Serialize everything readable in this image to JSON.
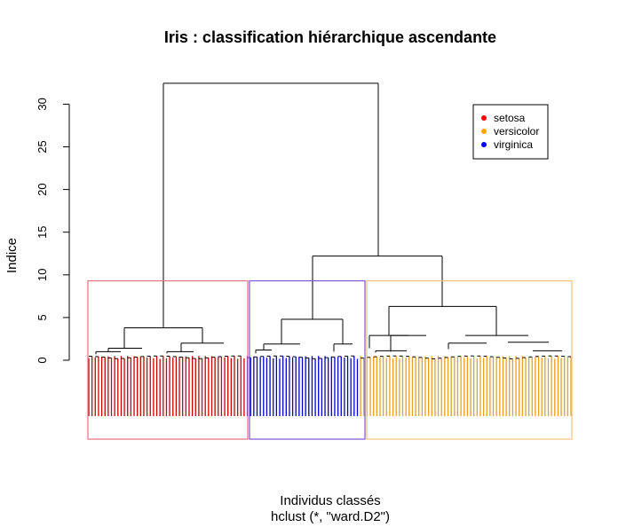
{
  "chart_data": {
    "type": "dendrogram",
    "title": "Iris : classification hiérarchique ascendante",
    "xlabel": "Individus classés",
    "xsublabel": "hclust (*, \"ward.D2\")",
    "ylabel": "Indice",
    "ylim": [
      0,
      32.5
    ],
    "yticks": [
      0,
      5,
      10,
      15,
      20,
      25,
      30
    ],
    "n_leaves": 150,
    "legend": {
      "position": "top-right",
      "items": [
        {
          "label": "setosa",
          "color": "#ff0000"
        },
        {
          "label": "versicolor",
          "color": "#ffa500"
        },
        {
          "label": "virginica",
          "color": "#0000ff"
        }
      ]
    },
    "cut_height": 9.3,
    "clusters": [
      {
        "id": 1,
        "size": 49,
        "box_color": "#e8707c",
        "leaf_color": "#cc0000"
      },
      {
        "id": 2,
        "size": 35,
        "box_color": "#7a55d6",
        "leaf_color": "#0000cc"
      },
      {
        "id": 3,
        "size": 66,
        "box_color": "#f2c07a",
        "leaf_color": "#e8a020"
      }
    ],
    "merges": [
      {
        "height": 32.44,
        "joins": "cluster 1 + (cluster 2 + cluster 3)"
      },
      {
        "height": 12.2,
        "joins": "cluster 2 + cluster 3"
      },
      {
        "height": 6.3,
        "within": "cluster 3"
      },
      {
        "height": 4.8,
        "within": "cluster 2"
      },
      {
        "height": 3.8,
        "within": "cluster 1"
      }
    ]
  }
}
